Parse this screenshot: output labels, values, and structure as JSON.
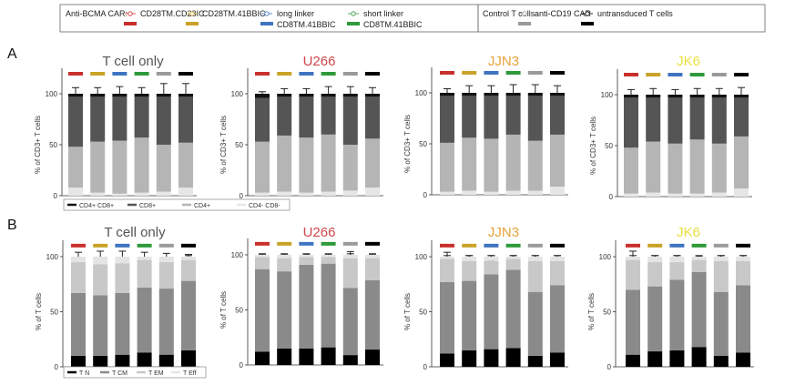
{
  "legend": {
    "car_label": "Anti-BCMA CAR:",
    "control_label": "Control T cells:",
    "groups": [
      {
        "label": "CD28TM.CD28IC",
        "color": "#c8302c"
      },
      {
        "label": "CD28TM.41BBIC",
        "color": "#c9a227"
      },
      {
        "label": "long linker CD8TM.41BBIC",
        "line1": "long linker",
        "line2": "CD8TM.41BBIC",
        "color": "#3e74c0"
      },
      {
        "label": "short linker CD8TM.41BBIC",
        "line1": "short linker",
        "line2": "CD8TM.41BBIC",
        "color": "#2e9a3a"
      },
      {
        "label": "anti-CD19 CAR",
        "color": "#9a9a9a"
      },
      {
        "label": "untransduced T cells",
        "color": "#000000"
      }
    ]
  },
  "panel_labels": {
    "a": "A",
    "b": "B"
  },
  "subset_legend_a": [
    {
      "label": "CD4+ CD8+",
      "color": "#111111"
    },
    {
      "label": "CD8+",
      "color": "#555555"
    },
    {
      "label": "CD4+",
      "color": "#b5b5b5"
    },
    {
      "label": "CD4- CD8-",
      "color": "#e6e6e6"
    }
  ],
  "subset_legend_b": [
    {
      "label": "T N",
      "color": "#000000"
    },
    {
      "label": "T CM",
      "color": "#8a8a8a"
    },
    {
      "label": "T EM",
      "color": "#c8c8c8"
    },
    {
      "label": "T Eff",
      "color": "#e4e4e4"
    }
  ],
  "title_colors": {
    "T cell only": "#555555",
    "U266": "#d0464c",
    "JJN3": "#e8a23a",
    "JK6": "#eadf3a"
  },
  "chart_data": [
    {
      "panel": "A",
      "type": "bar",
      "stacked": true,
      "title": "T cell only",
      "ylabel": "% of CD3+ T cells",
      "ylim": [
        0,
        125
      ],
      "yticks": [
        0,
        50,
        100
      ],
      "categories": [
        "CD28TM.CD28IC",
        "CD28TM.41BBIC",
        "long linker CD8TM.41BBIC",
        "short linker CD8TM.41BBIC",
        "anti-CD19 CAR",
        "untransduced T cells"
      ],
      "series": [
        {
          "name": "CD4- CD8-",
          "values": [
            8,
            3,
            2,
            3,
            4,
            8
          ],
          "errors": [
            2,
            1,
            1,
            1,
            1,
            2
          ]
        },
        {
          "name": "CD4+",
          "values": [
            40,
            50,
            52,
            54,
            46,
            44
          ],
          "errors": [
            9,
            10,
            12,
            12,
            14,
            10
          ]
        },
        {
          "name": "CD8+",
          "values": [
            49,
            44,
            43,
            40,
            47,
            45
          ],
          "errors": [
            0,
            0,
            0,
            0,
            0,
            0
          ]
        },
        {
          "name": "CD4+ CD8+",
          "values": [
            3,
            3,
            3,
            3,
            3,
            3
          ],
          "errors": [
            6,
            6,
            7,
            6,
            10,
            10
          ]
        }
      ]
    },
    {
      "panel": "A",
      "type": "bar",
      "stacked": true,
      "title": "U266",
      "ylabel": "% of CD3+ T cells",
      "ylim": [
        0,
        125
      ],
      "yticks": [
        0,
        50,
        100
      ],
      "categories": [
        "CD28TM.CD28IC",
        "CD28TM.41BBIC",
        "long linker CD8TM.41BBIC",
        "short linker CD8TM.41BBIC",
        "anti-CD19 CAR",
        "untransduced T cells"
      ],
      "series": [
        {
          "name": "CD4- CD8-",
          "values": [
            3,
            4,
            3,
            4,
            5,
            8
          ],
          "errors": [
            1,
            1,
            1,
            1,
            1,
            2
          ]
        },
        {
          "name": "CD4+",
          "values": [
            50,
            55,
            54,
            56,
            45,
            48
          ],
          "errors": [
            6,
            8,
            8,
            10,
            10,
            9
          ]
        },
        {
          "name": "CD8+",
          "values": [
            43,
            38,
            40,
            37,
            47,
            41
          ],
          "errors": [
            0,
            0,
            0,
            0,
            0,
            0
          ]
        },
        {
          "name": "CD4+ CD8+",
          "values": [
            4,
            3,
            3,
            3,
            3,
            3
          ],
          "errors": [
            2,
            5,
            5,
            7,
            7,
            6
          ]
        }
      ]
    },
    {
      "panel": "A",
      "type": "bar",
      "stacked": true,
      "title": "JJN3",
      "ylabel": "% of CD3+ T cells",
      "ylim": [
        0,
        125
      ],
      "yticks": [
        0,
        50,
        100
      ],
      "categories": [
        "CD28TM.CD28IC",
        "CD28TM.41BBIC",
        "long linker CD8TM.41BBIC",
        "short linker CD8TM.41BBIC",
        "anti-CD19 CAR",
        "untransduced T cells"
      ],
      "series": [
        {
          "name": "CD4- CD8-",
          "values": [
            3,
            4,
            3,
            4,
            4,
            8
          ],
          "errors": [
            1,
            1,
            1,
            1,
            1,
            2
          ]
        },
        {
          "name": "CD4+",
          "values": [
            48,
            52,
            52,
            55,
            49,
            51
          ],
          "errors": [
            7,
            10,
            10,
            12,
            11,
            10
          ]
        },
        {
          "name": "CD8+",
          "values": [
            46,
            41,
            42,
            38,
            44,
            38
          ],
          "errors": [
            0,
            0,
            0,
            0,
            0,
            0
          ]
        },
        {
          "name": "CD4+ CD8+",
          "values": [
            3,
            3,
            3,
            3,
            3,
            3
          ],
          "errors": [
            4,
            7,
            7,
            8,
            8,
            7
          ]
        }
      ]
    },
    {
      "panel": "A",
      "type": "bar",
      "stacked": true,
      "title": "JK6",
      "ylabel": "% of CD3+ T cells",
      "ylim": [
        0,
        125
      ],
      "yticks": [
        0,
        50,
        100
      ],
      "categories": [
        "CD28TM.CD28IC",
        "CD28TM.41BBIC",
        "long linker CD8TM.41BBIC",
        "short linker CD8TM.41BBIC",
        "anti-CD19 CAR",
        "untransduced T cells"
      ],
      "series": [
        {
          "name": "CD4- CD8-",
          "values": [
            3,
            4,
            3,
            3,
            4,
            8
          ],
          "errors": [
            1,
            1,
            1,
            1,
            1,
            2
          ]
        },
        {
          "name": "CD4+",
          "values": [
            45,
            50,
            49,
            53,
            48,
            51
          ],
          "errors": [
            8,
            9,
            10,
            10,
            9,
            9
          ]
        },
        {
          "name": "CD8+",
          "values": [
            49,
            43,
            45,
            41,
            45,
            38
          ],
          "errors": [
            0,
            0,
            0,
            0,
            0,
            0
          ]
        },
        {
          "name": "CD4+ CD8+",
          "values": [
            3,
            3,
            3,
            3,
            3,
            3
          ],
          "errors": [
            5,
            6,
            5,
            6,
            6,
            7
          ]
        }
      ]
    },
    {
      "panel": "B",
      "type": "bar",
      "stacked": true,
      "title": "T cell only",
      "ylabel": "% of T cells",
      "ylim": [
        0,
        115
      ],
      "yticks": [
        0,
        50,
        100
      ],
      "categories": [
        "CD28TM.CD28IC",
        "CD28TM.41BBIC",
        "long linker CD8TM.41BBIC",
        "short linker CD8TM.41BBIC",
        "anti-CD19 CAR",
        "untransduced T cells"
      ],
      "series": [
        {
          "name": "T N",
          "values": [
            10,
            10,
            11,
            13,
            11,
            15
          ],
          "errors": [
            3,
            5,
            5,
            6,
            4,
            5
          ]
        },
        {
          "name": "T CM",
          "values": [
            57,
            55,
            56,
            59,
            60,
            63
          ],
          "errors": [
            12,
            13,
            13,
            12,
            10,
            8
          ]
        },
        {
          "name": "T EM",
          "values": [
            28,
            28,
            27,
            25,
            24,
            19
          ],
          "errors": [
            4,
            4,
            3,
            1,
            4,
            4
          ]
        },
        {
          "name": "T Eff",
          "values": [
            5,
            7,
            6,
            3,
            5,
            3
          ],
          "errors": [
            4,
            5,
            5,
            4,
            3,
            2
          ]
        }
      ]
    },
    {
      "panel": "B",
      "type": "bar",
      "stacked": true,
      "title": "U266",
      "ylabel": "% of T cells",
      "ylim": [
        0,
        115
      ],
      "yticks": [
        0,
        50,
        100
      ],
      "categories": [
        "CD28TM.CD28IC",
        "CD28TM.41BBIC",
        "long linker CD8TM.41BBIC",
        "short linker CD8TM.41BBIC",
        "anti-CD19 CAR",
        "untransduced T cells"
      ],
      "series": [
        {
          "name": "T N",
          "values": [
            12,
            15,
            15,
            16,
            9,
            14
          ],
          "errors": [
            3,
            3,
            4,
            3,
            1,
            1
          ]
        },
        {
          "name": "T CM",
          "values": [
            75,
            70,
            76,
            76,
            61,
            63
          ],
          "errors": [
            3,
            7,
            1,
            1,
            7,
            4
          ]
        },
        {
          "name": "T EM",
          "values": [
            11,
            12,
            7,
            6,
            27,
            20
          ],
          "errors": [
            2,
            3,
            2,
            2,
            6,
            3
          ]
        },
        {
          "name": "T Eff",
          "values": [
            2,
            3,
            2,
            2,
            3,
            3
          ],
          "errors": [
            1,
            1,
            1,
            1,
            1,
            1
          ]
        }
      ]
    },
    {
      "panel": "B",
      "type": "bar",
      "stacked": true,
      "title": "JJN3",
      "ylabel": "% of T cells",
      "ylim": [
        0,
        115
      ],
      "yticks": [
        0,
        50,
        100
      ],
      "categories": [
        "CD28TM.CD28IC",
        "CD28TM.41BBIC",
        "long linker CD8TM.41BBIC",
        "short linker CD8TM.41BBIC",
        "anti-CD19 CAR",
        "untransduced T cells"
      ],
      "series": [
        {
          "name": "T N",
          "values": [
            12,
            15,
            16,
            17,
            10,
            13
          ],
          "errors": [
            3,
            4,
            6,
            5,
            1,
            3
          ]
        },
        {
          "name": "T CM",
          "values": [
            65,
            63,
            68,
            71,
            58,
            61
          ],
          "errors": [
            7,
            9,
            12,
            8,
            8,
            6
          ]
        },
        {
          "name": "T EM",
          "values": [
            21,
            18,
            12,
            10,
            28,
            22
          ],
          "errors": [
            6,
            5,
            5,
            3,
            5,
            5
          ]
        },
        {
          "name": "T Eff",
          "values": [
            2,
            4,
            4,
            2,
            4,
            4
          ],
          "errors": [
            1,
            1,
            1,
            1,
            1,
            1
          ]
        }
      ]
    },
    {
      "panel": "B",
      "type": "bar",
      "stacked": true,
      "title": "JK6",
      "ylabel": "% of T cells",
      "ylim": [
        0,
        115
      ],
      "yticks": [
        0,
        50,
        100
      ],
      "categories": [
        "CD28TM.CD28IC",
        "CD28TM.41BBIC",
        "long linker CD8TM.41BBIC",
        "short linker CD8TM.41BBIC",
        "anti-CD19 CAR",
        "untransduced T cells"
      ],
      "series": [
        {
          "name": "T N",
          "values": [
            11,
            14,
            15,
            18,
            10,
            13
          ],
          "errors": [
            4,
            4,
            5,
            5,
            3,
            3
          ]
        },
        {
          "name": "T CM",
          "values": [
            59,
            59,
            64,
            68,
            58,
            61
          ],
          "errors": [
            8,
            9,
            13,
            10,
            10,
            7
          ]
        },
        {
          "name": "T EM",
          "values": [
            27,
            22,
            16,
            11,
            28,
            22
          ],
          "errors": [
            8,
            6,
            6,
            3,
            5,
            5
          ]
        },
        {
          "name": "T Eff",
          "values": [
            3,
            5,
            5,
            3,
            4,
            4
          ],
          "errors": [
            1,
            1,
            1,
            1,
            1,
            1
          ]
        }
      ]
    }
  ]
}
